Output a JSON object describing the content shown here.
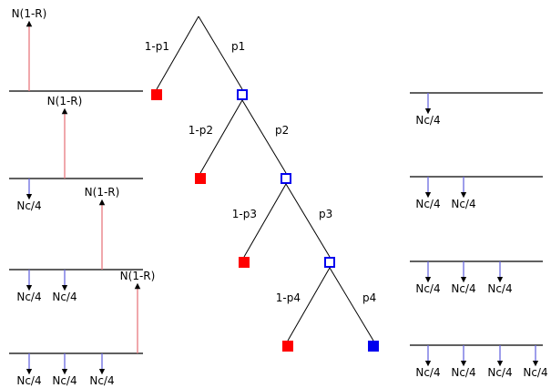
{
  "colors": {
    "recovery": "#e87a80",
    "coupon": "#6a6ae0",
    "default_node": "#ff0000",
    "survival_node": "#0000ee",
    "line": "#000000"
  },
  "recovery_label": "N(1-R)",
  "coupon_label": "Nc/4",
  "tree": {
    "branches": [
      {
        "default_label": "1-p1",
        "survive_label": "p1"
      },
      {
        "default_label": "1-p2",
        "survive_label": "p2"
      },
      {
        "default_label": "1-p3",
        "survive_label": "p3"
      },
      {
        "default_label": "1-p4",
        "survive_label": "p4"
      }
    ],
    "final_survival_node": "filled"
  },
  "left_timelines": [
    {
      "coupons": 0,
      "recovery_period": 1
    },
    {
      "coupons": 1,
      "recovery_period": 2
    },
    {
      "coupons": 2,
      "recovery_period": 3
    },
    {
      "coupons": 3,
      "recovery_period": 4
    }
  ],
  "right_timelines": [
    {
      "coupons": 1
    },
    {
      "coupons": 2
    },
    {
      "coupons": 3
    },
    {
      "coupons": 4
    }
  ]
}
